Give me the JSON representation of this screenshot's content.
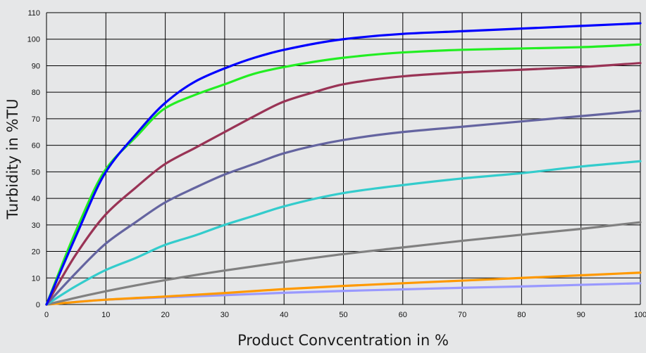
{
  "chart_data": {
    "type": "line",
    "title": "",
    "xlabel": "Product Convcentration in %",
    "ylabel": "Turbidity in %TU",
    "xlim": [
      0,
      100
    ],
    "ylim": [
      0,
      110
    ],
    "xticks": [
      0,
      10,
      20,
      30,
      40,
      50,
      60,
      70,
      80,
      90,
      100
    ],
    "yticks": [
      0,
      10,
      20,
      30,
      40,
      50,
      60,
      70,
      80,
      90,
      100,
      110
    ],
    "grid": true,
    "legend": "none",
    "series": [
      {
        "color": "#0000ff",
        "x": [
          0,
          5,
          10,
          15,
          20,
          25,
          30,
          35,
          40,
          50,
          60,
          70,
          80,
          90,
          100
        ],
        "y": [
          0,
          26,
          50,
          64,
          76,
          84,
          89,
          93,
          96,
          100,
          102,
          103,
          104,
          105,
          106
        ]
      },
      {
        "color": "#22ee22",
        "x": [
          0,
          5,
          10,
          15,
          20,
          25,
          30,
          35,
          40,
          50,
          60,
          70,
          80,
          90,
          100
        ],
        "y": [
          0,
          28,
          51,
          63,
          74,
          79,
          83,
          87,
          89.5,
          93,
          95,
          96,
          96.5,
          97,
          98
        ]
      },
      {
        "color": "#993355",
        "x": [
          0,
          5,
          10,
          15,
          20,
          25,
          30,
          35,
          40,
          45,
          50,
          60,
          70,
          80,
          90,
          100
        ],
        "y": [
          0,
          19,
          34,
          44,
          53,
          59,
          65,
          71,
          76.5,
          80,
          83,
          86,
          87.5,
          88.5,
          89.5,
          91
        ]
      },
      {
        "color": "#6464a0",
        "x": [
          0,
          5,
          10,
          15,
          20,
          25,
          30,
          35,
          40,
          50,
          60,
          70,
          80,
          90,
          100
        ],
        "y": [
          0,
          12,
          23,
          31,
          38.5,
          44,
          49,
          53,
          57,
          62,
          65,
          67,
          69,
          71,
          73
        ]
      },
      {
        "color": "#33cccc",
        "x": [
          0,
          5,
          10,
          15,
          20,
          25,
          30,
          35,
          40,
          50,
          60,
          70,
          80,
          90,
          100
        ],
        "y": [
          0,
          7,
          13,
          17.5,
          22.5,
          26,
          30,
          33.5,
          37,
          42,
          45,
          47.5,
          49.5,
          52,
          54
        ]
      },
      {
        "color": "#808080",
        "x": [
          0,
          10,
          20,
          30,
          40,
          50,
          60,
          70,
          80,
          90,
          100
        ],
        "y": [
          0,
          5,
          9.2,
          12.8,
          16,
          19,
          21.5,
          24,
          26.3,
          28.5,
          31
        ]
      },
      {
        "color": "#ff9900",
        "x": [
          0,
          10,
          20,
          30,
          40,
          50,
          60,
          70,
          80,
          90,
          100
        ],
        "y": [
          0,
          1.8,
          3,
          4.3,
          5.8,
          7,
          8,
          9,
          10,
          11,
          12
        ]
      },
      {
        "color": "#9999ff",
        "x": [
          0,
          10,
          20,
          30,
          40,
          50,
          60,
          70,
          80,
          90,
          100
        ],
        "y": [
          0,
          1.8,
          2.7,
          3.5,
          4.4,
          5.1,
          5.7,
          6.3,
          6.8,
          7.4,
          8
        ]
      }
    ]
  }
}
